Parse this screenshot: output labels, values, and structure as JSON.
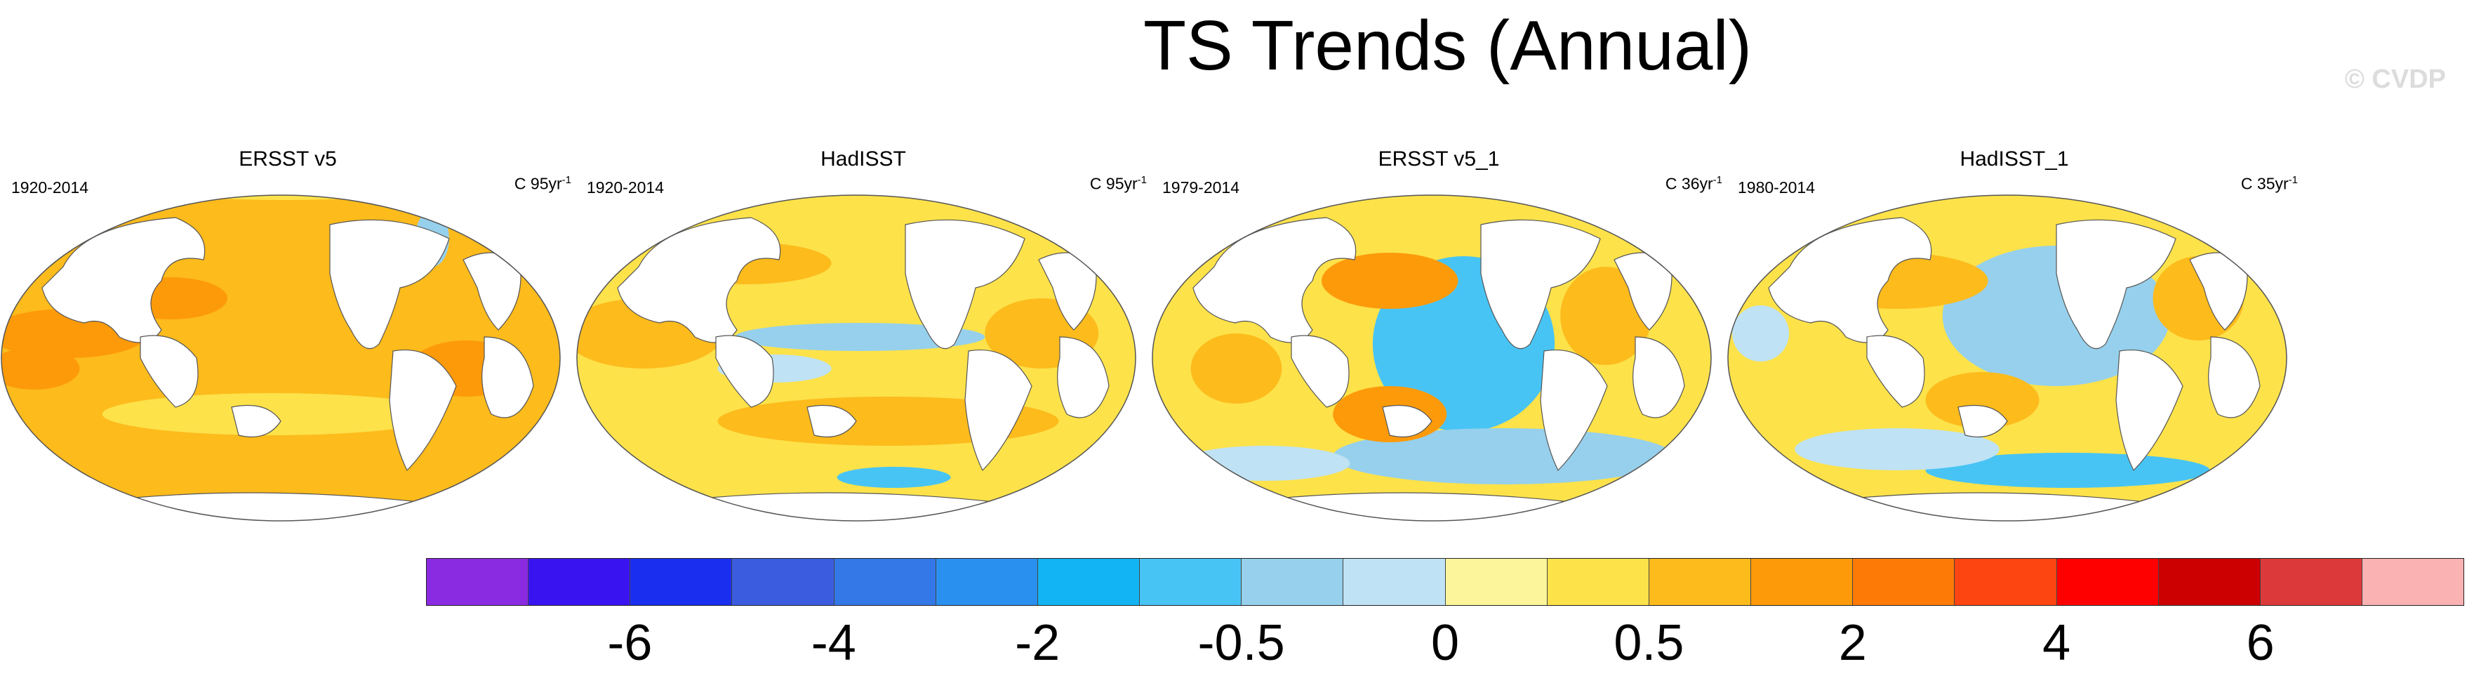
{
  "title": "TS Trends (Annual)",
  "watermark": "© CVDP",
  "panels": [
    {
      "name": "ERSST v5",
      "period": "1920-2014",
      "units_prefix": "C 95yr",
      "units_exp": "-1"
    },
    {
      "name": "HadISST",
      "period": "1920-2014",
      "units_prefix": "C 95yr",
      "units_exp": "-1"
    },
    {
      "name": "ERSST v5_1",
      "period": "1979-2014",
      "units_prefix": "C 36yr",
      "units_exp": "-1"
    },
    {
      "name": "HadISST_1",
      "period": "1980-2014",
      "units_prefix": "C 35yr",
      "units_exp": "-1"
    }
  ],
  "colorbar": {
    "colors": [
      "#8a2be2",
      "#3a14f0",
      "#1a2ef0",
      "#3c5ce0",
      "#3478e8",
      "#2a90f0",
      "#12b4f4",
      "#48c4f4",
      "#96d0ec",
      "#bfe2f4",
      "#fdf59c",
      "#fde24a",
      "#fdbb1c",
      "#fd9a0a",
      "#fd7a06",
      "#fc4510",
      "#ff0000",
      "#cc0000",
      "#dc3a3a",
      "#fbb2b2"
    ],
    "labels": [
      "-6",
      "-4",
      "-2",
      "-0.5",
      "0",
      "0.5",
      "2",
      "4",
      "6"
    ]
  }
}
